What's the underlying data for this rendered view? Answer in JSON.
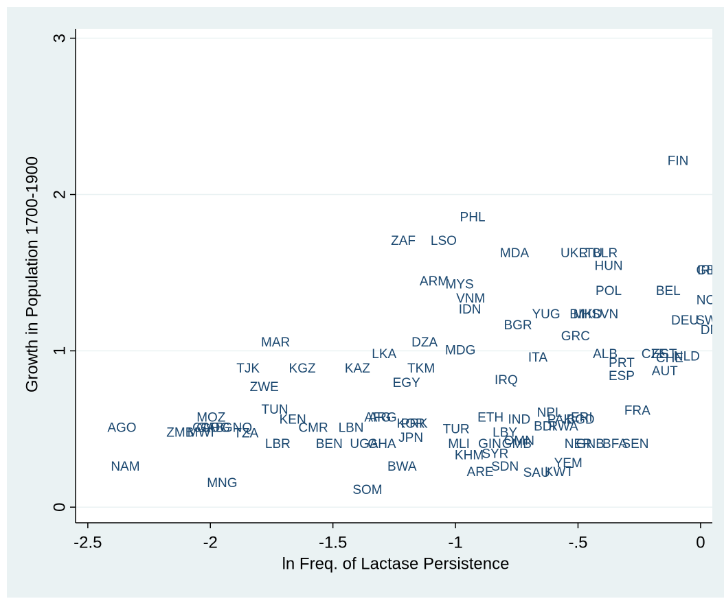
{
  "chart_data": {
    "type": "scatter",
    "xlabel": "ln Freq. of Lactase Persistence",
    "ylabel": "Growth in Population 1700-1900",
    "xlim": [
      -2.55,
      0.048
    ],
    "ylim": [
      -0.1,
      3.06
    ],
    "xticks": [
      -2.5,
      -2,
      -1.5,
      -1,
      {
        "value": -0.5,
        "label": "-.5"
      },
      0
    ],
    "yticks": [
      0,
      1,
      2,
      3
    ],
    "grid": true,
    "color": "#1a476f",
    "labels": [
      "FIN",
      "PHL",
      "ZAF",
      "LSO",
      "MDA",
      "UKR",
      "LTU",
      "BLR",
      "HUN",
      "IRL",
      "GBR",
      "ARM",
      "MYS",
      "VNM",
      "IDN",
      "POL",
      "BEL",
      "NOR",
      "YUG",
      "BIH",
      "MKD",
      "SVN",
      "BGR",
      "DEU",
      "SWE",
      "DNK",
      "GRC",
      "MAR",
      "DZA",
      "MDG",
      "LKA",
      "ALB",
      "CZE",
      "EST",
      "CHE",
      "NLD",
      "ITA",
      "PRT",
      "AUT",
      "ESP",
      "TJK",
      "KGZ",
      "KAZ",
      "TKM",
      "EGY",
      "IRQ",
      "ZWE",
      "MOZ",
      "AFG",
      "ARG",
      "KOR",
      "PRK",
      "ETH",
      "ERI",
      "TUN",
      "FRA",
      "KEN",
      "NPL",
      "IND",
      "PAK",
      "BGD",
      "AGO",
      "CMR",
      "LBN",
      "ZMB",
      "MWI",
      "CAF",
      "GAB",
      "COG",
      "GNQ",
      "TZA",
      "BDI",
      "RWA",
      "TUR",
      "JPN",
      "LBY",
      "UGA",
      "GHA",
      "LBR",
      "BEN",
      "MLI",
      "GIN",
      "GMB",
      "OMN",
      "NER",
      "GNB",
      "BFA",
      "SEN",
      "KHM",
      "SYR",
      "BWA",
      "NAM",
      "YEM",
      "SDN",
      "ARE",
      "SAU",
      "KWT",
      "MNG",
      "SOM"
    ],
    "x": [
      -0.092,
      -0.93,
      -1.213,
      -1.048,
      -0.759,
      -0.515,
      -0.448,
      -0.39,
      -0.375,
      0.028,
      0.04,
      -1.087,
      -0.983,
      -0.938,
      -0.941,
      -0.375,
      -0.132,
      0.042,
      -0.63,
      -0.49,
      -0.46,
      -0.39,
      -0.745,
      -0.064,
      0.042,
      0.056,
      -0.51,
      -1.734,
      -1.126,
      -0.98,
      -1.291,
      -0.389,
      -0.188,
      -0.148,
      -0.126,
      -0.056,
      -0.664,
      -0.322,
      -0.146,
      -0.322,
      -1.846,
      -1.625,
      -1.4,
      -1.14,
      -1.2,
      -0.793,
      -1.78,
      -1.997,
      -1.317,
      -1.297,
      -1.182,
      -1.168,
      -0.857,
      -0.485,
      -1.737,
      -0.258,
      -1.664,
      -0.616,
      -0.74,
      -0.574,
      -0.49,
      -2.361,
      -1.58,
      -1.426,
      -2.123,
      -2.039,
      -2.02,
      -2.0,
      -1.98,
      -1.89,
      -1.854,
      -0.636,
      -0.56,
      -0.997,
      -1.182,
      -0.798,
      -1.373,
      -1.3,
      -1.725,
      -1.515,
      -0.986,
      -0.86,
      -0.75,
      -0.74,
      -0.499,
      -0.45,
      -0.35,
      -0.266,
      -0.944,
      -0.838,
      -1.218,
      -2.347,
      -0.54,
      -0.798,
      -0.899,
      -0.669,
      -0.577,
      -1.952,
      -1.359
    ],
    "y": [
      2.21,
      1.85,
      1.7,
      1.7,
      1.62,
      1.62,
      1.62,
      1.62,
      1.54,
      1.51,
      1.51,
      1.44,
      1.42,
      1.33,
      1.26,
      1.38,
      1.38,
      1.32,
      1.23,
      1.23,
      1.23,
      1.23,
      1.16,
      1.19,
      1.19,
      1.13,
      1.09,
      1.05,
      1.05,
      1.0,
      0.976,
      0.976,
      0.976,
      0.976,
      0.95,
      0.96,
      0.954,
      0.918,
      0.865,
      0.834,
      0.883,
      0.883,
      0.883,
      0.883,
      0.79,
      0.808,
      0.764,
      0.57,
      0.57,
      0.57,
      0.53,
      0.53,
      0.57,
      0.57,
      0.62,
      0.614,
      0.556,
      0.6,
      0.556,
      0.556,
      0.556,
      0.503,
      0.503,
      0.503,
      0.472,
      0.472,
      0.503,
      0.503,
      0.503,
      0.503,
      0.468,
      0.512,
      0.512,
      0.494,
      0.44,
      0.472,
      0.4,
      0.4,
      0.4,
      0.4,
      0.4,
      0.4,
      0.4,
      0.42,
      0.4,
      0.4,
      0.4,
      0.4,
      0.327,
      0.336,
      0.256,
      0.256,
      0.278,
      0.256,
      0.22,
      0.216,
      0.22,
      0.15,
      0.106
    ]
  }
}
